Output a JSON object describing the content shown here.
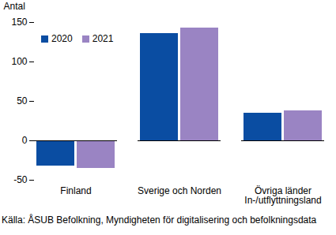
{
  "chart_data": {
    "type": "bar",
    "y_label": "Antal",
    "categories": [
      "Finland",
      "Sverige och Norden",
      "Övriga länder\nIn-/utflyttningsland"
    ],
    "series": [
      {
        "name": "2020",
        "color": "#0a4da2",
        "values": [
          -32,
          136,
          35
        ]
      },
      {
        "name": "2021",
        "color": "#9a84c3",
        "values": [
          -35,
          143,
          38
        ]
      }
    ],
    "ylim": [
      -50,
      150
    ],
    "yticks": [
      -50,
      0,
      50,
      100,
      150
    ],
    "grid": false,
    "legend": "top-left",
    "source": "Källa: ÅSUB Befolkning, Myndigheten för digitalisering och befolkningsdata"
  }
}
